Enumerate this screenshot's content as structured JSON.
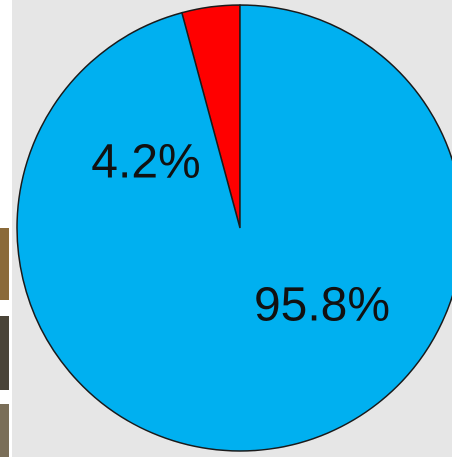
{
  "chart_data": {
    "type": "pie",
    "values": [
      4.2,
      95.8
    ],
    "value_labels": [
      "4.2%",
      "95.8%"
    ],
    "colors": [
      "#ff0000",
      "#00b0f0"
    ]
  }
}
